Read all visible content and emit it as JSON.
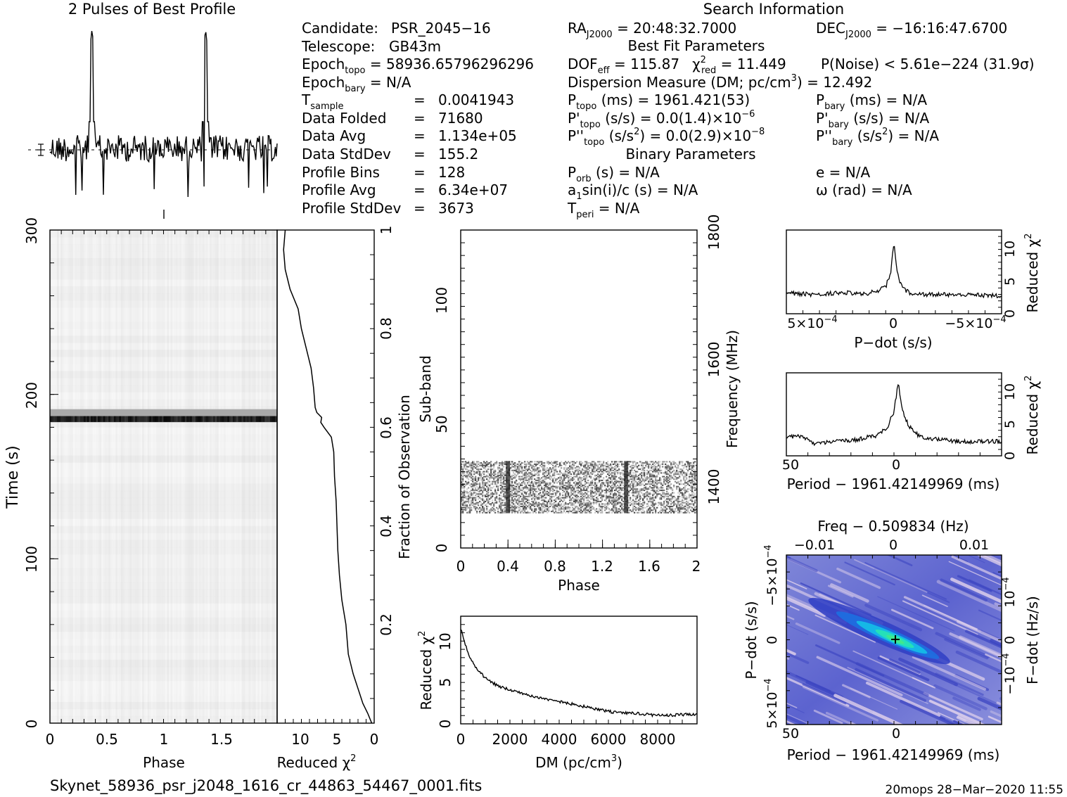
{
  "chart_data": [
    {
      "type": "line",
      "title": "2 Pulses of Best Profile",
      "phase_range": [
        0,
        2
      ],
      "pulse_peak_phases": [
        0.37,
        1.37
      ],
      "relative_intensity": {
        "baseline": 0.5,
        "peak": 1.0,
        "min": 0.1
      }
    },
    {
      "type": "heatmap",
      "xlabel": "Phase",
      "ylabel": "Time (s)",
      "xticks": [
        "0",
        "0.5",
        "1",
        "1.5"
      ],
      "yticks": [
        "0",
        "100",
        "200",
        "300"
      ],
      "xlim": [
        0,
        2
      ],
      "ylim": [
        0,
        300
      ],
      "dark_band_time_s": 185,
      "grey_band_time_s": [
        183,
        191
      ]
    },
    {
      "type": "line",
      "xlabel": "Reduced",
      "xlabel_symbol": "χ",
      "xlabel_exp": "2",
      "ylabel": "Fraction of Observation",
      "xticks": [
        "10",
        "5",
        "0"
      ],
      "yticks": [
        "0.2",
        "0.4",
        "0.6",
        "0.8",
        "1"
      ],
      "xlim": [
        12,
        0
      ],
      "ylim": [
        0,
        1
      ],
      "x": [
        0.3,
        0.8,
        1.4,
        1.8,
        2.2,
        2.6,
        3.2,
        3.5,
        4.0,
        4.3,
        4.5,
        4.6,
        4.7,
        4.9,
        5.0,
        5.3,
        6.2,
        6.6,
        6.5,
        7.1,
        7.3,
        7.5,
        7.8,
        8.4,
        9.0,
        9.4,
        10.4,
        11.0,
        11.2,
        11.0
      ],
      "y": [
        0.0,
        0.02,
        0.04,
        0.06,
        0.08,
        0.1,
        0.14,
        0.2,
        0.25,
        0.3,
        0.35,
        0.4,
        0.45,
        0.5,
        0.55,
        0.58,
        0.6,
        0.61,
        0.62,
        0.63,
        0.64,
        0.68,
        0.72,
        0.76,
        0.8,
        0.84,
        0.88,
        0.92,
        0.96,
        1.0
      ]
    },
    {
      "type": "heatmap",
      "xlabel": "Phase",
      "ylabel": "Sub-band",
      "y2label": "Frequency (MHz)",
      "xticks": [
        "0",
        "0.4",
        "0.8",
        "1.2",
        "1.6",
        "2"
      ],
      "yticks": [
        "0",
        "50",
        "100"
      ],
      "y2ticks": [
        "1400",
        "1600",
        "1800"
      ],
      "xlim": [
        0,
        2
      ],
      "ylim": [
        0,
        128
      ],
      "y2lim": [
        1285,
        1800
      ],
      "active_subbands": [
        14,
        35
      ],
      "dark_phase_columns": [
        0.4,
        1.4
      ]
    },
    {
      "type": "line",
      "xlabel": "DM (pc/cm",
      "xlabel_exp": "3",
      "xlabel_end": ")",
      "ylabel": "Reduced",
      "ylabel_symbol": "χ",
      "ylabel_exp": "2",
      "xticks": [
        "0",
        "2000",
        "4000",
        "6000",
        "8000"
      ],
      "yticks": [
        "0",
        "5",
        "10"
      ],
      "xlim": [
        0,
        9600
      ],
      "ylim": [
        0,
        13
      ],
      "x": [
        0,
        100,
        200,
        300,
        500,
        700,
        1000,
        1500,
        2000,
        2500,
        3000,
        3500,
        4000,
        5000,
        6000,
        6500,
        7000,
        8000,
        9000,
        9600
      ],
      "y": [
        11.5,
        10.5,
        9.5,
        8.5,
        7.3,
        6.5,
        5.5,
        4.6,
        4.1,
        3.7,
        3.3,
        3.0,
        2.7,
        2.1,
        1.5,
        1.3,
        1.3,
        1.0,
        1.1,
        1.2
      ]
    },
    {
      "type": "line",
      "xlabel": "P−dot (s/s)",
      "ylabel": "Reduced",
      "ylabel_symbol": "χ",
      "ylabel_exp": "2",
      "xticks": [
        "5×10",
        "0",
        "−5×10"
      ],
      "xtick_exp": "−4",
      "yticks": [
        "0",
        "5",
        "10"
      ],
      "xlim": [
        0.00066,
        -0.00066
      ],
      "ylim": [
        0,
        13
      ],
      "x": [
        0.00066,
        0.0005,
        0.0003,
        0.0002,
        0.0001,
        5e-05,
        2e-05,
        0.0,
        -2e-05,
        -5e-05,
        -0.0001,
        -0.0002,
        -0.0003,
        -0.0005,
        -0.00066
      ],
      "y": [
        3.2,
        3.0,
        3.3,
        3.0,
        3.5,
        4.2,
        6.5,
        11.4,
        6.3,
        4.0,
        3.2,
        3.0,
        3.0,
        2.9,
        2.8
      ]
    },
    {
      "type": "line",
      "xlabel": "Period − 1961.42149969 (ms)",
      "ylabel": "Reduced",
      "ylabel_symbol": "χ",
      "ylabel_exp": "2",
      "xticks": [
        "50",
        "0"
      ],
      "yticks": [
        "0",
        "5",
        "10"
      ],
      "xlim": [
        52,
        -48
      ],
      "ylim": [
        0,
        13
      ],
      "x": [
        52,
        45,
        40,
        35,
        30,
        20,
        10,
        5,
        2,
        0,
        -2,
        -5,
        -10,
        -20,
        -30,
        -40,
        -48
      ],
      "y": [
        3.0,
        3.1,
        2.0,
        2.0,
        2.3,
        2.5,
        3.2,
        4.5,
        7.0,
        11.5,
        7.0,
        4.6,
        3.0,
        2.5,
        2.2,
        2.2,
        2.3
      ]
    },
    {
      "type": "heatmap",
      "title": "Freq − 0.509834 (Hz)",
      "xlabel": "Period − 1961.42149969 (ms)",
      "ylabel": "P−dot (s/s)",
      "y2label": "F−dot (Hz/s)",
      "xticks": [
        "50",
        "0"
      ],
      "x2ticks": [
        "−0.01",
        "0",
        "0.01"
      ],
      "yticks": [
        "5×10",
        "0",
        "−5×10"
      ],
      "ytick_exp": "−4",
      "y2ticks": [
        "−10",
        "0",
        "10"
      ],
      "y2tick_exp": "−4",
      "xlim": [
        52,
        -48
      ],
      "best_fit_marker": {
        "period_offset_ms": 0,
        "pdot": 0
      }
    }
  ],
  "info": {
    "header": "Search Information",
    "left": [
      {
        "label": "Candidate:",
        "value": "PSR_2045−16"
      },
      {
        "label": "Telescope:",
        "value": "GB43m"
      },
      {
        "label": "Epoch",
        "sub": "topo",
        "value": "= 58936.65796296296"
      },
      {
        "label": "Epoch",
        "sub": "bary",
        "value": "= N/A"
      },
      {
        "label": "T",
        "sub": "sample",
        "eq": "=",
        "value": "0.0041943"
      },
      {
        "label": "Data Folded",
        "eq": "=",
        "value": "71680"
      },
      {
        "label": "Data Avg",
        "eq": "=",
        "value": "1.134e+05"
      },
      {
        "label": "Data StdDev",
        "eq": "=",
        "value": "155.2"
      },
      {
        "label": "Profile Bins",
        "eq": "=",
        "value": "128"
      },
      {
        "label": "Profile Avg",
        "eq": "=",
        "value": "6.34e+07"
      },
      {
        "label": "Profile StdDev",
        "eq": "=",
        "value": "3673"
      }
    ],
    "ra": {
      "label": "RA",
      "sub": "J2000",
      "value": "= 20:48:32.7000"
    },
    "dec": {
      "label": "DEC",
      "sub": "J2000",
      "value": "= −16:16:47.6700"
    },
    "best_fit_header": "Best Fit Parameters",
    "dof": {
      "label": "DOF",
      "sub": "eff",
      "value": "= 115.87"
    },
    "chi2": {
      "label": "χ",
      "sup": "2",
      "sub": "red",
      "value": "= 11.449"
    },
    "pnoise": "P(Noise) < 5.61e−224   (31.9σ)",
    "dm": {
      "text": "Dispersion Measure (DM; pc/cm",
      "sup": "3",
      "end": ") = 12.492"
    },
    "ptopo": {
      "label": "P",
      "sub": "topo",
      "value": "(ms) =  1961.421(53)"
    },
    "pdtopo": {
      "label": "P'",
      "sub": "topo",
      "value": "(s/s) = 0.0(1.4)×10",
      "exp": "−6"
    },
    "pddtopo": {
      "label": "P''",
      "sub": "topo",
      "value": "(s/s",
      "sup": "2",
      "end": ") = 0.0(2.9)×10",
      "exp": "−8"
    },
    "pbary": {
      "label": "P",
      "sub": "bary",
      "value": "(ms) = N/A"
    },
    "pdbary": {
      "label": "P'",
      "sub": "bary",
      "value": "(s/s) = N/A"
    },
    "pddbary": {
      "label": "P''",
      "sub": "bary",
      "value": "(s/s",
      "sup": "2",
      "end": ") = N/A"
    },
    "binary_header": "Binary Parameters",
    "porb": {
      "label": "P",
      "sub": "orb",
      "value": "(s) = N/A"
    },
    "asini": {
      "label": "a",
      "sub": "1",
      "value": "sin(i)/c (s) = N/A"
    },
    "tperi": {
      "label": "T",
      "sub": "peri",
      "value": "= N/A"
    },
    "ecc": "e = N/A",
    "omega": "ω (rad) = N/A"
  },
  "footer": {
    "filename": "Skynet_58936_psr_j2048_1616_cr_44863_54467_0001.fits",
    "stamp": "20mops 28−Mar−2020 11:55"
  }
}
